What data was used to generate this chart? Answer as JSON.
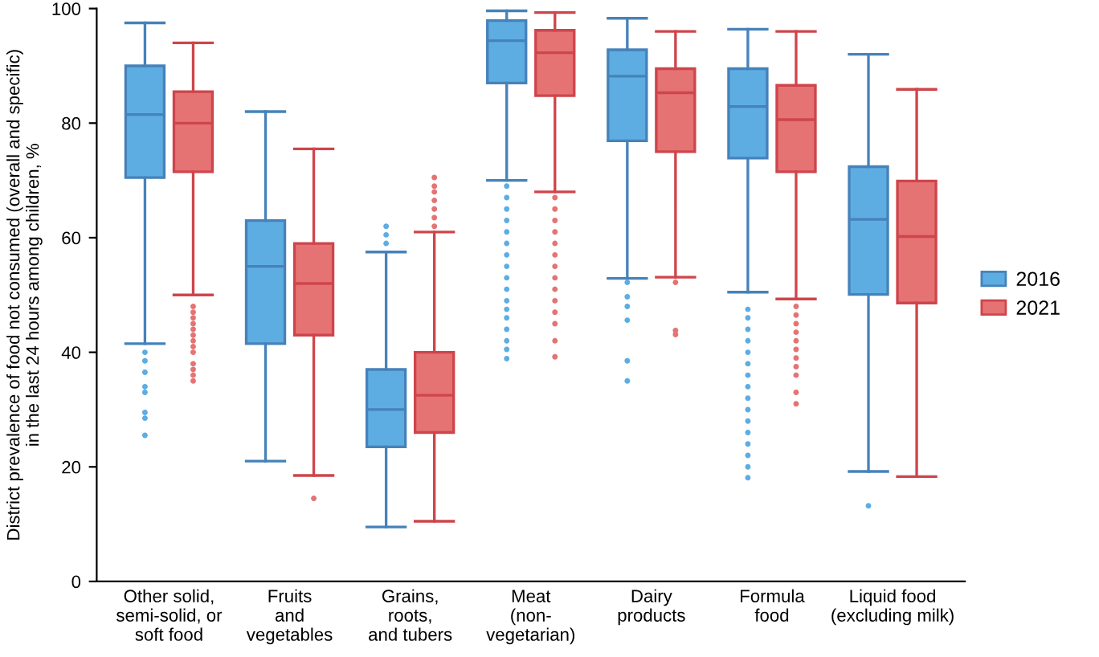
{
  "chart_data": {
    "type": "box",
    "ylabel": "District prevalence of food not consumed (overall and specific)\nin the last 24 hours among children, %",
    "categories": [
      "Other solid,\nsemi-solid, or\nsoft food",
      "Fruits\nand\nvegetables",
      "Grains,\nroots,\nand tubers",
      "Meat\n(non-\nvegetarian)",
      "Dairy\nproducts",
      "Formula\nfood",
      "Liquid food\n(excluding milk)"
    ],
    "ylim": [
      0,
      100
    ],
    "yticks": [
      0,
      20,
      40,
      60,
      80,
      100
    ],
    "grid": false,
    "legend": "right",
    "series": [
      {
        "name": "2016",
        "color": "#5dade2",
        "boxes": [
          {
            "low": 41.5,
            "q1": 70.5,
            "median": 81.5,
            "q3": 90,
            "high": 97.5,
            "outliers": [
              40,
              38.5,
              36.5,
              34,
              33,
              29.5,
              28.5,
              25.5
            ]
          },
          {
            "low": 21,
            "q1": 41.5,
            "median": 55,
            "q3": 63,
            "high": 82
          },
          {
            "low": 9.5,
            "q1": 23.5,
            "median": 30,
            "q3": 37,
            "high": 57.5,
            "outliers": [
              59,
              60.5,
              62
            ]
          },
          {
            "low": 70,
            "q1": 87,
            "median": 94.4,
            "q3": 97.9,
            "high": 99.6,
            "outliers": [
              69,
              67,
              65,
              63,
              61,
              59,
              57,
              55,
              53,
              51,
              49,
              47.5,
              46,
              44,
              42,
              40.5,
              38.9
            ]
          },
          {
            "low": 52.9,
            "q1": 76.9,
            "median": 88.2,
            "q3": 92.8,
            "high": 98.3,
            "outliers": [
              52.2,
              49.7,
              48,
              45.6,
              38.5,
              35
            ]
          },
          {
            "low": 50.5,
            "q1": 73.9,
            "median": 82.9,
            "q3": 89.5,
            "high": 96.4,
            "outliers": [
              47.5,
              46,
              44,
              42,
              40,
              38,
              36,
              34,
              32,
              30,
              28,
              26,
              24,
              22,
              20,
              18.1
            ]
          },
          {
            "low": 19.2,
            "q1": 50.1,
            "median": 63.2,
            "q3": 72.4,
            "high": 92,
            "outliers": [
              13.2
            ]
          }
        ]
      },
      {
        "name": "2021",
        "color": "#e57373",
        "boxes": [
          {
            "low": 50,
            "q1": 71.5,
            "median": 80,
            "q3": 85.5,
            "high": 94,
            "outliers": [
              48,
              47,
              46,
              45,
              44,
              43,
              42,
              41,
              40,
              38,
              37,
              36,
              35
            ]
          },
          {
            "low": 18.5,
            "q1": 43,
            "median": 52,
            "q3": 59,
            "high": 75.5,
            "outliers": [
              14.5
            ]
          },
          {
            "low": 10.5,
            "q1": 26,
            "median": 32.5,
            "q3": 40,
            "high": 61,
            "outliers": [
              62,
              63.5,
              65,
              66.5,
              68,
              69,
              70.5
            ]
          },
          {
            "low": 68,
            "q1": 84.8,
            "median": 92.3,
            "q3": 96.2,
            "high": 99.3,
            "outliers": [
              67,
              65,
              63,
              61,
              59,
              57,
              55,
              53,
              51,
              49,
              47,
              45,
              42,
              39.2
            ]
          },
          {
            "low": 53.1,
            "q1": 75,
            "median": 85.3,
            "q3": 89.5,
            "high": 96,
            "outliers": [
              52.2,
              43.8,
              43.1
            ]
          },
          {
            "low": 49.3,
            "q1": 71.5,
            "median": 80.6,
            "q3": 86.6,
            "high": 96,
            "outliers": [
              48,
              46.5,
              45,
              43.5,
              42,
              40.5,
              39,
              37.5,
              36,
              33,
              31
            ]
          },
          {
            "low": 18.3,
            "q1": 48.6,
            "median": 60.2,
            "q3": 69.9,
            "high": 85.9
          }
        ]
      }
    ]
  }
}
